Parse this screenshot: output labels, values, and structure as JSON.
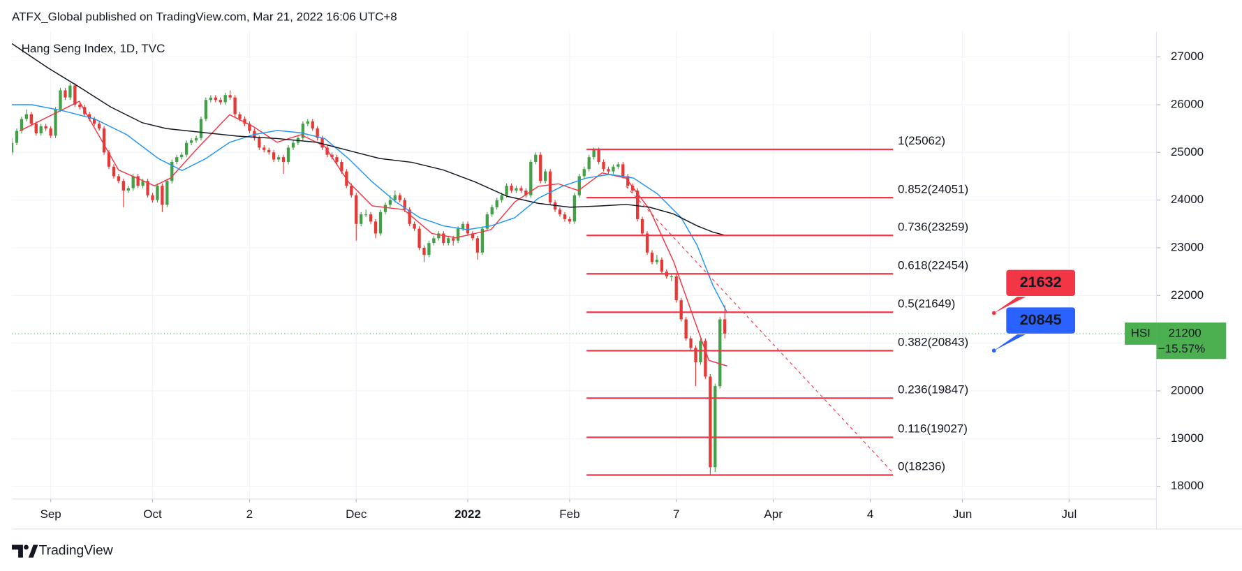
{
  "header": "ATFX_Global published on TradingView.com, Mar 21, 2022 16:06 UTC+8",
  "footer": "TradingView",
  "chart_data": {
    "type": "candlestick",
    "title": "Hang Seng Index, 1D, TVC",
    "up_color": "#43a047",
    "down_color": "#e53935",
    "xlim": [
      0,
      236
    ],
    "ylim": [
      17735,
      27530
    ],
    "xticks": [
      {
        "value": 8,
        "label": "Sep"
      },
      {
        "value": 29,
        "label": "Oct"
      },
      {
        "value": 49,
        "label": "2"
      },
      {
        "value": 71,
        "label": "Dec"
      },
      {
        "value": 94,
        "label": "2022"
      },
      {
        "value": 115,
        "label": "Feb"
      },
      {
        "value": 137,
        "label": "7"
      },
      {
        "value": 157,
        "label": "Apr"
      },
      {
        "value": 177,
        "label": "4"
      },
      {
        "value": 196,
        "label": "Jun"
      },
      {
        "value": 218,
        "label": "Jul"
      }
    ],
    "yticks": [
      18000,
      19000,
      20000,
      21000,
      22000,
      23000,
      24000,
      25000,
      26000,
      27000
    ],
    "bold_xtick": 4,
    "grid": true,
    "candles": [
      [
        25000,
        25300,
        24950,
        25200
      ],
      [
        25200,
        25500,
        25150,
        25450
      ],
      [
        25450,
        25750,
        25400,
        25700
      ],
      [
        25700,
        25900,
        25650,
        25800
      ],
      [
        25800,
        25850,
        25550,
        25600
      ],
      [
        25600,
        25650,
        25350,
        25400
      ],
      [
        25400,
        25600,
        25350,
        25550
      ],
      [
        25550,
        25600,
        25450,
        25500
      ],
      [
        25500,
        25550,
        25300,
        25350
      ],
      [
        25350,
        25950,
        25300,
        25900
      ],
      [
        25900,
        26350,
        25850,
        26300
      ],
      [
        26300,
        26350,
        26100,
        26150
      ],
      [
        26150,
        26450,
        26100,
        26400
      ],
      [
        26400,
        26450,
        25950,
        26000
      ],
      [
        26000,
        26050,
        25900,
        25950
      ],
      [
        25950,
        26000,
        25750,
        25800
      ],
      [
        25800,
        25850,
        25650,
        25700
      ],
      [
        25700,
        25750,
        25550,
        25600
      ],
      [
        25600,
        25650,
        25450,
        25500
      ],
      [
        25500,
        25550,
        24950,
        25000
      ],
      [
        25000,
        25050,
        24650,
        24700
      ],
      [
        24700,
        24750,
        24450,
        24500
      ],
      [
        24500,
        24550,
        24350,
        24400
      ],
      [
        24400,
        24450,
        23850,
        24200
      ],
      [
        24200,
        24300,
        24150,
        24250
      ],
      [
        24250,
        24550,
        24200,
        24500
      ],
      [
        24500,
        24550,
        24250,
        24300
      ],
      [
        24300,
        24450,
        24250,
        24400
      ],
      [
        24400,
        24450,
        24050,
        24100
      ],
      [
        24100,
        24150,
        23950,
        24000
      ],
      [
        24000,
        24350,
        23950,
        24300
      ],
      [
        24300,
        24350,
        23750,
        23900
      ],
      [
        23900,
        24450,
        23850,
        24400
      ],
      [
        24400,
        24850,
        24350,
        24800
      ],
      [
        24800,
        24950,
        24750,
        24900
      ],
      [
        24900,
        25000,
        24850,
        24950
      ],
      [
        24950,
        25250,
        24900,
        25200
      ],
      [
        25200,
        25300,
        25150,
        25250
      ],
      [
        25250,
        25350,
        25200,
        25300
      ],
      [
        25300,
        25750,
        25250,
        25700
      ],
      [
        25700,
        26150,
        25650,
        26100
      ],
      [
        26100,
        26200,
        26050,
        26150
      ],
      [
        26150,
        26200,
        26050,
        26100
      ],
      [
        26100,
        26150,
        26000,
        26050
      ],
      [
        26050,
        26250,
        26000,
        26200
      ],
      [
        26200,
        26300,
        26100,
        26150
      ],
      [
        26150,
        26200,
        25750,
        25800
      ],
      [
        25800,
        25850,
        25650,
        25700
      ],
      [
        25700,
        25750,
        25550,
        25600
      ],
      [
        25600,
        25650,
        25400,
        25450
      ],
      [
        25450,
        25500,
        25250,
        25300
      ],
      [
        25300,
        25350,
        25050,
        25100
      ],
      [
        25100,
        25150,
        25000,
        25050
      ],
      [
        25050,
        25100,
        24950,
        25000
      ],
      [
        25000,
        25050,
        24800,
        24850
      ],
      [
        24850,
        24950,
        24800,
        24900
      ],
      [
        24900,
        24950,
        24550,
        24800
      ],
      [
        24800,
        25150,
        24750,
        25100
      ],
      [
        25100,
        25250,
        25050,
        25200
      ],
      [
        25200,
        25350,
        25150,
        25300
      ],
      [
        25300,
        25650,
        25250,
        25600
      ],
      [
        25600,
        25700,
        25550,
        25650
      ],
      [
        25650,
        25700,
        25450,
        25500
      ],
      [
        25500,
        25550,
        25250,
        25300
      ],
      [
        25300,
        25350,
        25050,
        25100
      ],
      [
        25100,
        25150,
        24900,
        24950
      ],
      [
        24950,
        25000,
        24850,
        24900
      ],
      [
        24900,
        24950,
        24750,
        24800
      ],
      [
        24800,
        24850,
        24550,
        24600
      ],
      [
        24600,
        24650,
        24250,
        24300
      ],
      [
        24300,
        24350,
        24050,
        24100
      ],
      [
        24100,
        24150,
        23150,
        23500
      ],
      [
        23500,
        23750,
        23450,
        23700
      ],
      [
        23700,
        23800,
        23650,
        23700
      ],
      [
        23700,
        23750,
        23500,
        23550
      ],
      [
        23550,
        23600,
        23200,
        23300
      ],
      [
        23300,
        23800,
        23250,
        23750
      ],
      [
        23750,
        23950,
        23700,
        23900
      ],
      [
        23900,
        24100,
        23850,
        24000
      ],
      [
        24000,
        24200,
        23950,
        24100
      ],
      [
        24100,
        24150,
        23950,
        24000
      ],
      [
        24000,
        24050,
        23750,
        23800
      ],
      [
        23800,
        23850,
        23450,
        23500
      ],
      [
        23500,
        23550,
        23350,
        23400
      ],
      [
        23400,
        23450,
        22950,
        23000
      ],
      [
        23000,
        23050,
        22700,
        22850
      ],
      [
        22850,
        23150,
        22800,
        23100
      ],
      [
        23100,
        23250,
        23050,
        23200
      ],
      [
        23200,
        23350,
        23150,
        23300
      ],
      [
        23300,
        23350,
        23050,
        23100
      ],
      [
        23100,
        23250,
        23050,
        23200
      ],
      [
        23200,
        23250,
        23050,
        23150
      ],
      [
        23150,
        23450,
        23100,
        23400
      ],
      [
        23400,
        23550,
        23350,
        23500
      ],
      [
        23500,
        23550,
        23250,
        23300
      ],
      [
        23300,
        23350,
        23150,
        23200
      ],
      [
        23200,
        23250,
        22750,
        22900
      ],
      [
        22900,
        23450,
        22850,
        23400
      ],
      [
        23400,
        23750,
        23350,
        23700
      ],
      [
        23700,
        23900,
        23650,
        23850
      ],
      [
        23850,
        24050,
        23800,
        24000
      ],
      [
        24000,
        24150,
        23950,
        24100
      ],
      [
        24100,
        24350,
        24050,
        24300
      ],
      [
        24300,
        24350,
        24150,
        24200
      ],
      [
        24200,
        24300,
        24150,
        24250
      ],
      [
        24250,
        24300,
        24150,
        24200
      ],
      [
        24200,
        24250,
        24050,
        24100
      ],
      [
        24100,
        24850,
        24050,
        24800
      ],
      [
        24800,
        25000,
        24750,
        24950
      ],
      [
        24950,
        25000,
        24350,
        24400
      ],
      [
        24400,
        24650,
        24350,
        24600
      ],
      [
        24600,
        24650,
        23900,
        23950
      ],
      [
        23950,
        24000,
        23750,
        23800
      ],
      [
        23800,
        23850,
        23650,
        23700
      ],
      [
        23700,
        23750,
        23550,
        23600
      ],
      [
        23600,
        23650,
        23500,
        23550
      ],
      [
        23550,
        24150,
        23500,
        24100
      ],
      [
        24100,
        24550,
        24050,
        24500
      ],
      [
        24500,
        24700,
        24450,
        24650
      ],
      [
        24650,
        24950,
        24600,
        24900
      ],
      [
        24900,
        25100,
        24850,
        25050
      ],
      [
        25050,
        25100,
        24750,
        24800
      ],
      [
        24800,
        24850,
        24600,
        24650
      ],
      [
        24650,
        24700,
        24550,
        24600
      ],
      [
        24600,
        24750,
        24550,
        24700
      ],
      [
        24700,
        24800,
        24650,
        24750
      ],
      [
        24750,
        24800,
        24450,
        24500
      ],
      [
        24500,
        24550,
        24250,
        24300
      ],
      [
        24300,
        24350,
        24150,
        24200
      ],
      [
        24200,
        24250,
        23550,
        23600
      ],
      [
        23600,
        23650,
        23250,
        23300
      ],
      [
        23300,
        23350,
        22850,
        22900
      ],
      [
        22900,
        22950,
        22650,
        22700
      ],
      [
        22700,
        22850,
        22650,
        22750
      ],
      [
        22750,
        22800,
        22450,
        22500
      ],
      [
        22500,
        22550,
        22350,
        22400
      ],
      [
        22400,
        22450,
        22300,
        22400
      ],
      [
        22400,
        22450,
        21850,
        21900
      ],
      [
        21900,
        21950,
        21450,
        21500
      ],
      [
        21500,
        21550,
        21050,
        21100
      ],
      [
        21100,
        21150,
        20850,
        20900
      ],
      [
        20900,
        20950,
        20100,
        20600
      ],
      [
        20600,
        21100,
        20550,
        21050
      ],
      [
        21050,
        21100,
        20250,
        20300
      ],
      [
        20300,
        20350,
        18236,
        18400
      ],
      [
        18400,
        20150,
        18300,
        20100
      ],
      [
        20100,
        21550,
        20050,
        21500
      ],
      [
        21500,
        21800,
        21100,
        21200
      ]
    ],
    "ma": [
      {
        "color": "#f23645",
        "x": [
          1.6,
          13.9,
          22.0,
          29.4,
          32.7,
          38.4,
          44.9,
          49.8,
          54.7,
          59.6,
          64.5,
          69.4,
          74.3,
          80.8,
          86.6,
          91.5,
          95.5,
          98.8,
          103.7,
          108.6,
          112.7,
          116.8,
          121.7,
          126.6,
          131.5,
          136.4,
          140.5,
          143.7,
          147.5
        ],
        "values": [
          25450,
          26070,
          24630,
          24300,
          24460,
          25100,
          25790,
          25540,
          25210,
          25370,
          25130,
          24380,
          23880,
          23800,
          23300,
          23210,
          23300,
          23380,
          23960,
          24290,
          24340,
          24200,
          24570,
          24460,
          23800,
          22720,
          21550,
          20640,
          20520
        ]
      },
      {
        "color": "#2196f3",
        "x": [
          0,
          4.1,
          10.6,
          17.1,
          23.7,
          30.2,
          35.1,
          40.0,
          44.9,
          49.8,
          54.7,
          59.6,
          64.5,
          69.4,
          74.3,
          79.2,
          84.1,
          89.0,
          93.9,
          98.8,
          103.7,
          108.6,
          113.5,
          118.4,
          123.3,
          128.2,
          133.1,
          138.0,
          141.3,
          144.5,
          147.5
        ],
        "values": [
          26000,
          26000,
          25870,
          25700,
          25370,
          24870,
          24620,
          24870,
          25210,
          25370,
          25460,
          25410,
          25290,
          24870,
          24380,
          23960,
          23630,
          23460,
          23380,
          23460,
          23630,
          24040,
          24290,
          24460,
          24540,
          24460,
          24130,
          23630,
          23050,
          22220,
          21640
        ]
      },
      {
        "color": "#131722",
        "x": [
          0,
          7.3,
          13.9,
          20.4,
          26.9,
          31.8,
          40.0,
          46.5,
          54.7,
          62.9,
          69.4,
          75.9,
          82.5,
          89.0,
          95.5,
          102.1,
          108.6,
          115.1,
          121.7,
          126.6,
          131.5,
          136.4,
          141.3,
          144.5,
          147.5
        ],
        "values": [
          27280,
          26780,
          26370,
          25950,
          25620,
          25500,
          25410,
          25340,
          25290,
          25210,
          25040,
          24870,
          24790,
          24630,
          24380,
          24080,
          23930,
          23850,
          23880,
          23910,
          23850,
          23710,
          23460,
          23330,
          23250
        ]
      }
    ],
    "fib": {
      "color": "#f23645",
      "x": [
        118.5,
        181.7
      ],
      "levels": [
        {
          "value": 25062,
          "label": "1(25062)"
        },
        {
          "value": 24051,
          "label": "0.852(24051)"
        },
        {
          "value": 23259,
          "label": "0.736(23259)"
        },
        {
          "value": 22454,
          "label": "0.618(22454)"
        },
        {
          "value": 21649,
          "label": "0.5(21649)"
        },
        {
          "value": 20843,
          "label": "0.382(20843)"
        },
        {
          "value": 19847,
          "label": "0.236(19847)"
        },
        {
          "value": 19027,
          "label": "0.116(19027)"
        },
        {
          "value": 18236,
          "label": "0(18236)"
        }
      ]
    },
    "trendline": {
      "color": "#f23645",
      "x": [
        126.6,
        181.7
      ],
      "values": [
        24290,
        18280
      ]
    },
    "price_labels": [
      {
        "value": 21632,
        "color": "#f23645",
        "x": 202.5
      },
      {
        "value": 20845,
        "color": "#2962ff",
        "x": 202.5
      }
    ],
    "current": {
      "symbol": "HSI",
      "value": 21200,
      "change": {
        "value": -15.57,
        "label": "−15.57%"
      },
      "color": "#4caf50"
    }
  }
}
